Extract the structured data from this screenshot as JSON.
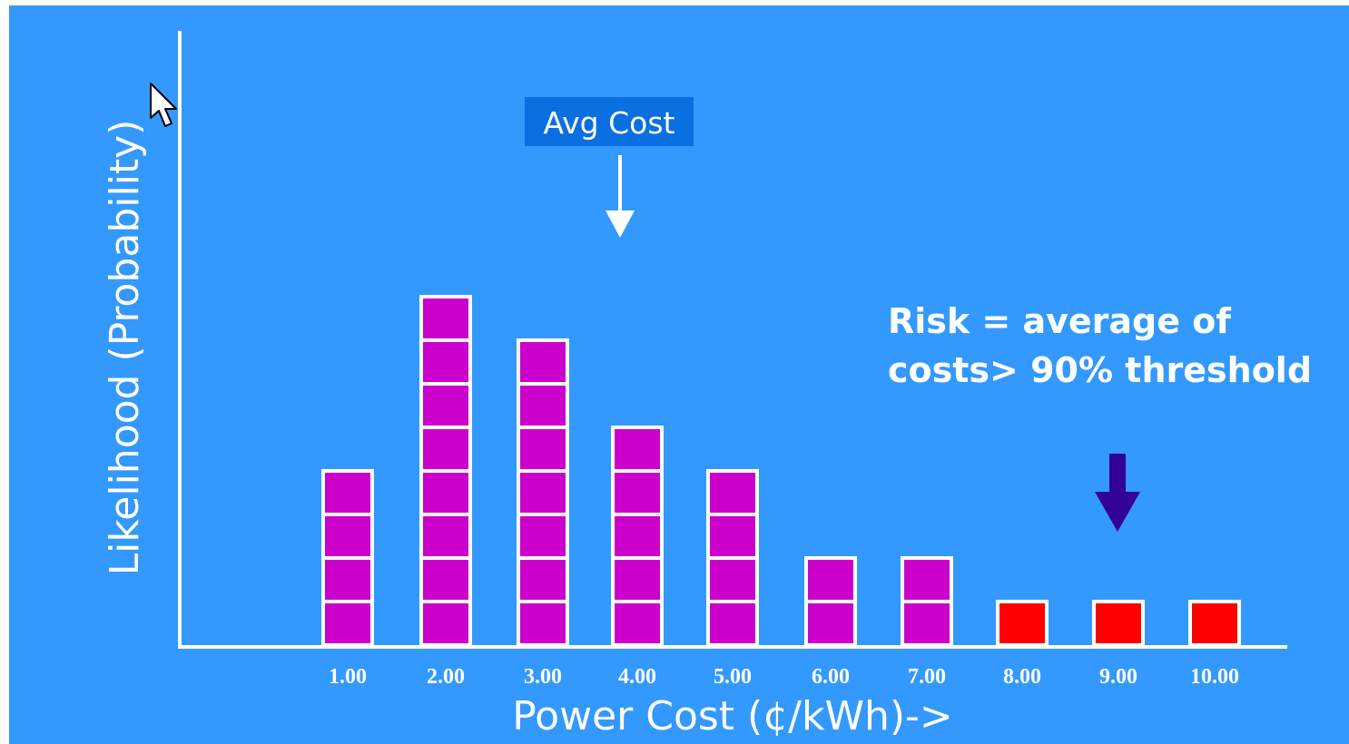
{
  "chart_data": {
    "type": "bar",
    "title": "",
    "xlabel": "Power Cost (¢/kWh)->",
    "ylabel": "Likelihood (Probability)",
    "categories": [
      "1.00",
      "2.00",
      "3.00",
      "4.00",
      "5.00",
      "6.00",
      "7.00",
      "8.00",
      "9.00",
      "10.00"
    ],
    "values": [
      4,
      8,
      7,
      5,
      4,
      2,
      2,
      1,
      1,
      1
    ],
    "bar_unit": "stacked unit squares",
    "ylim": [
      0,
      8
    ],
    "grid": false,
    "legend": "none",
    "series": [
      {
        "name": "",
        "color": "#cc00cc",
        "values": [
          4,
          8,
          7,
          5,
          4,
          2,
          2,
          0,
          0,
          0
        ]
      },
      {
        "name": "",
        "color": "#ff0000",
        "values": [
          0,
          0,
          0,
          0,
          0,
          0,
          0,
          1,
          1,
          1
        ]
      }
    ],
    "annotations": {
      "avg_cost": {
        "label": "Avg Cost",
        "x": 3.8,
        "arrow_color": "#ffffff",
        "box_color": "#0a6fe0"
      },
      "risk": {
        "lines": [
          "Risk = average of",
          "costs> 90% threshold"
        ],
        "x": 9.0,
        "arrow_color": "#330099"
      }
    }
  },
  "colors": {
    "background": "#3399ff",
    "axis": "#ffffff",
    "block_stroke": "#ffffff"
  },
  "icons": {
    "cursor": "mouse-pointer-icon"
  }
}
